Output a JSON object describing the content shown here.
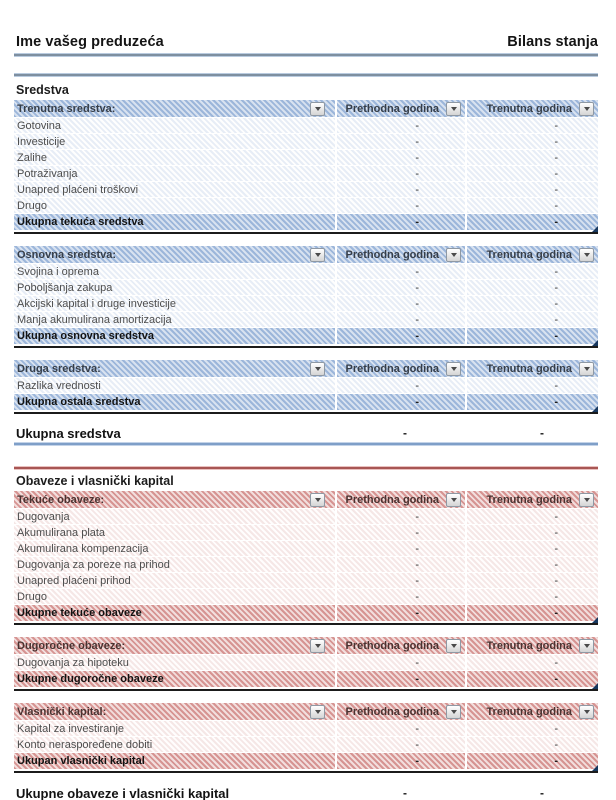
{
  "page": {
    "company_name": "Ime vašeg preduzeća",
    "document_title": "Bilans stanja"
  },
  "columns": {
    "previous_year": "Prethodna godina",
    "current_year": "Trenutna godina"
  },
  "icons": {
    "filter_dropdown": "autofilter dropdown arrow"
  },
  "colors": {
    "blue_hatch_dark": "#9cb6da",
    "blue_hatch_light": "#d8e2f0",
    "red_hatch_dark": "#d69492",
    "red_hatch_light": "#f2dedd",
    "rule_blue": "#7e8fa0",
    "rule_red": "#a85654",
    "total_border": "#1b1b1b",
    "corner_marker": "#17375e"
  },
  "assets": {
    "section_title": "Sredstva",
    "tables": [
      {
        "header": "Trenutna sredstva:",
        "rows": [
          {
            "label": "Gotovina",
            "prev": "-",
            "curr": "-"
          },
          {
            "label": "Investicije",
            "prev": "-",
            "curr": "-"
          },
          {
            "label": "Zalihe",
            "prev": "-",
            "curr": "-"
          },
          {
            "label": "Potraživanja",
            "prev": "-",
            "curr": "-"
          },
          {
            "label": "Unapred plaćeni troškovi",
            "prev": "-",
            "curr": "-"
          },
          {
            "label": "Drugo",
            "prev": "-",
            "curr": "-"
          }
        ],
        "total": {
          "label": "Ukupna tekuća sredstva",
          "prev": "-",
          "curr": "-"
        }
      },
      {
        "header": "Osnovna sredstva:",
        "rows": [
          {
            "label": "Svojina i oprema",
            "prev": "-",
            "curr": "-"
          },
          {
            "label": "Poboljšanja zakupa",
            "prev": "-",
            "curr": "-"
          },
          {
            "label": "Akcijski kapital i druge investicije",
            "prev": "-",
            "curr": "-"
          },
          {
            "label": "Manja akumulirana amortizacija",
            "prev": "-",
            "curr": "-"
          }
        ],
        "total": {
          "label": "Ukupna osnovna sredstva",
          "prev": "-",
          "curr": "-"
        }
      },
      {
        "header": "Druga sredstva:",
        "rows": [
          {
            "label": "Razlika vrednosti",
            "prev": "-",
            "curr": "-"
          }
        ],
        "total": {
          "label": "Ukupna ostala sredstva",
          "prev": "-",
          "curr": "-"
        }
      }
    ],
    "grand_total": {
      "label": "Ukupna sredstva",
      "prev": "-",
      "curr": "-"
    }
  },
  "liabilities": {
    "section_title": "Obaveze i vlasnički kapital",
    "tables": [
      {
        "header": "Tekuće obaveze:",
        "rows": [
          {
            "label": "Dugovanja",
            "prev": "-",
            "curr": "-"
          },
          {
            "label": "Akumulirana plata",
            "prev": "-",
            "curr": "-"
          },
          {
            "label": "Akumulirana kompenzacija",
            "prev": "-",
            "curr": "-"
          },
          {
            "label": "Dugovanja za poreze na prihod",
            "prev": "-",
            "curr": "-"
          },
          {
            "label": "Unapred plaćeni prihod",
            "prev": "-",
            "curr": "-"
          },
          {
            "label": "Drugo",
            "prev": "-",
            "curr": "-"
          }
        ],
        "total": {
          "label": "Ukupne tekuće obaveze",
          "prev": "-",
          "curr": "-"
        }
      },
      {
        "header": "Dugoročne obaveze:",
        "rows": [
          {
            "label": "Dugovanja za hipoteku",
            "prev": "-",
            "curr": "-"
          }
        ],
        "total": {
          "label": "Ukupne dugoročne obaveze",
          "prev": "-",
          "curr": "-"
        }
      },
      {
        "header": "Vlasnički kapital:",
        "rows": [
          {
            "label": "Kapital za investiranje",
            "prev": "-",
            "curr": "-"
          },
          {
            "label": "Konto neraspoređene dobiti",
            "prev": "-",
            "curr": "-"
          }
        ],
        "total": {
          "label": "Ukupan vlasnički kapital",
          "prev": "-",
          "curr": "-"
        }
      }
    ],
    "grand_total": {
      "label": "Ukupne obaveze i vlasnički kapital",
      "prev": "-",
      "curr": "-"
    }
  }
}
